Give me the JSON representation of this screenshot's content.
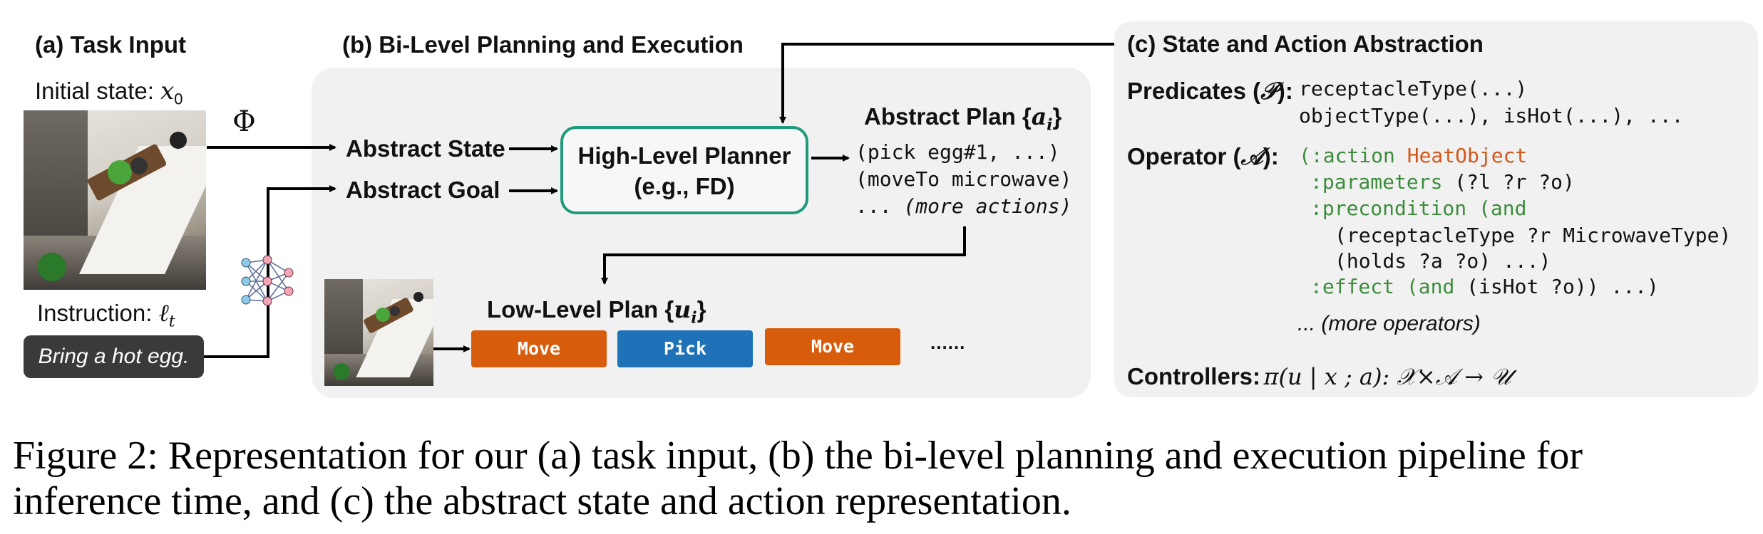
{
  "panel_a": {
    "title": "(a) Task Input",
    "initial_state_label": "Initial state:",
    "initial_state_symbol": "x",
    "initial_state_sub": "0",
    "phi_symbol": "Φ",
    "instruction_label": "Instruction:",
    "instruction_symbol": "ℓ",
    "instruction_sub": "t",
    "instruction_text": "Bring a hot egg."
  },
  "panel_b": {
    "title": "(b) Bi-Level Planning and Execution",
    "abstract_state": "Abstract State",
    "abstract_goal": "Abstract Goal",
    "planner_line1": "High-Level Planner",
    "planner_line2": "(e.g., FD)",
    "abstract_plan_title": "Abstract Plan {",
    "abstract_plan_symbol": "a",
    "abstract_plan_sub": "i",
    "abstract_plan_close": "}",
    "plan_line1": "(pick egg#1, ...)",
    "plan_line2": "(moveTo microwave)",
    "plan_line3_prefix": "... ",
    "plan_line3_italic": "(more actions)",
    "low_level_title": "Low-Level Plan {",
    "low_level_symbol": "u",
    "low_level_sub": "i",
    "low_level_close": "}",
    "low_level_actions": [
      "Move",
      "Pick",
      "Move"
    ],
    "low_level_more": "......"
  },
  "panel_c": {
    "title": "(c) State and Action Abstraction",
    "predicates_label": "Predicates (",
    "predicates_symbol": "𝒫",
    "predicates_close": "):",
    "pred_line1": "receptacleType(...)",
    "pred_line2": "objectType(...), isHot(...), ...",
    "operator_label": "Operator (",
    "operator_symbol": "𝒜",
    "operator_close": "):",
    "op_l1_a": "(:action ",
    "op_l1_b": "HeatObject",
    "op_l2_a": ":parameters",
    "op_l2_b": " (?l ?r ?o)",
    "op_l3_a": ":precondition",
    "op_l3_b": " (and",
    "op_l4": "(receptacleType ?r MicrowaveType)",
    "op_l5": "(holds ?a ?o) ...)",
    "op_l6_a": ":effect",
    "op_l6_b": " (and",
    "op_l6_c": " (isHot ?o)) ...)",
    "more_operators": "... (more operators)",
    "controllers_label": "Controllers:",
    "controllers_formula": "π(u | x ; a): 𝒳×𝒜 → 𝒰"
  },
  "caption": {
    "line1": "Figure 2: Representation for our (a) task input, (b) the bi-level planning and execution pipeline for",
    "line2": "inference time, and (c) the abstract state and action representation."
  },
  "colors": {
    "planner_border": "#1f9b7c",
    "move_button": "#d75d0c",
    "pick_button": "#1f72b8",
    "panel_bg": "#f1f1f1",
    "pddl_keyword": "#3c8c3c",
    "pddl_action_name": "#d4571a"
  },
  "icons": [
    "neural-network-icon",
    "scene-image"
  ]
}
